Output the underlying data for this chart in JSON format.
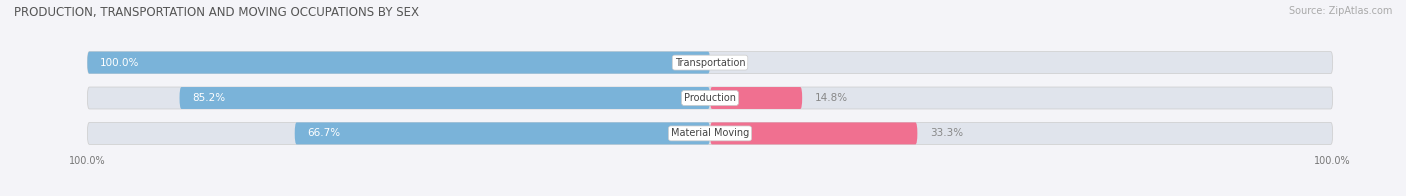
{
  "title": "PRODUCTION, TRANSPORTATION AND MOVING OCCUPATIONS BY SEX",
  "source": "Source: ZipAtlas.com",
  "categories": [
    "Transportation",
    "Production",
    "Material Moving"
  ],
  "male_pct": [
    100.0,
    85.2,
    66.7
  ],
  "female_pct": [
    0.0,
    14.8,
    33.3
  ],
  "male_color": "#7ab3d9",
  "female_color": "#f07090",
  "bar_bg_color": "#e0e4ec",
  "fig_bg_color": "#f4f4f8",
  "male_label_color": "#ffffff",
  "female_label_color": "#888888",
  "title_color": "#555555",
  "source_color": "#aaaaaa",
  "category_text_color": "#444444",
  "title_fontsize": 8.5,
  "source_fontsize": 7,
  "bar_label_fontsize": 7.5,
  "category_fontsize": 7,
  "legend_fontsize": 7,
  "axis_label_fontsize": 7,
  "bar_height": 0.62,
  "figsize": [
    14.06,
    1.96
  ],
  "dpi": 100,
  "total_width": 100,
  "x_axis_labels": [
    "100.0%",
    "100.0%"
  ],
  "x_axis_positions": [
    0,
    100
  ]
}
